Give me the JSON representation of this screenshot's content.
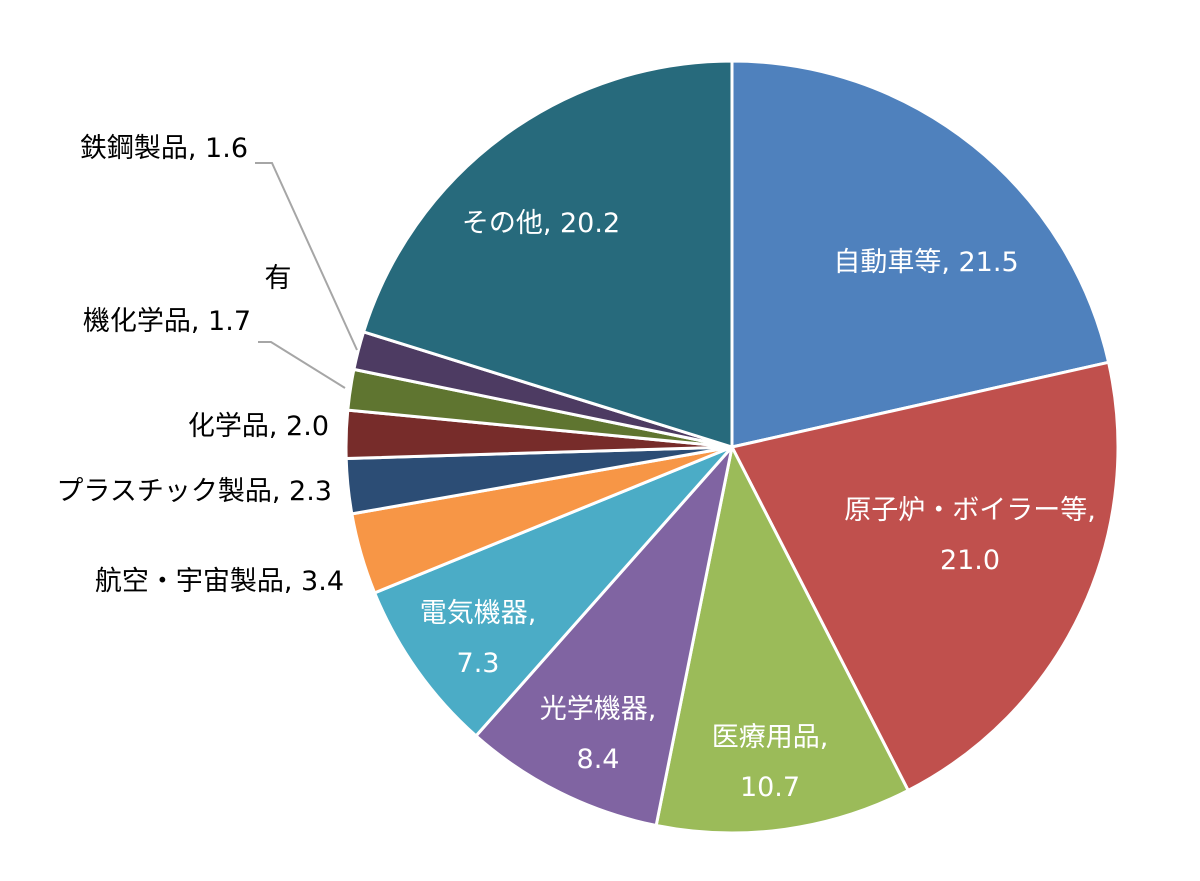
{
  "chart_data": {
    "type": "pie",
    "title": "",
    "slices": [
      {
        "label": "自動車等",
        "value": 21.5,
        "color": "#4f81bd",
        "label_color": "#ffffff",
        "lines": [
          "自動車等, 21.5"
        ]
      },
      {
        "label": "原子炉・ボイラー等",
        "value": 21.0,
        "color": "#c0504d",
        "label_color": "#ffffff",
        "lines": [
          "原子炉・ボイラー等,",
          "21.0"
        ]
      },
      {
        "label": "医療用品",
        "value": 10.7,
        "color": "#9bbb59",
        "label_color": "#ffffff",
        "lines": [
          "医療用品,",
          "10.7"
        ]
      },
      {
        "label": "光学機器",
        "value": 8.4,
        "color": "#8064a2",
        "label_color": "#ffffff",
        "lines": [
          "光学機器,",
          "8.4"
        ]
      },
      {
        "label": "電気機器",
        "value": 7.3,
        "color": "#4bacc6",
        "label_color": "#ffffff",
        "lines": [
          "電気機器,",
          "7.3"
        ]
      },
      {
        "label": "航空・宇宙製品",
        "value": 3.4,
        "color": "#f79646",
        "label_color": "#000000",
        "lines": [
          "航空・宇宙製品, 3.4"
        ]
      },
      {
        "label": "プラスチック製品",
        "value": 2.3,
        "color": "#2c4d75",
        "label_color": "#000000",
        "lines": [
          "プラスチック製品, 2.3"
        ]
      },
      {
        "label": "化学品",
        "value": 2.0,
        "color": "#772c2a",
        "label_color": "#000000",
        "lines": [
          "化学品, 2.0"
        ]
      },
      {
        "label": "有機化学品",
        "value": 1.7,
        "color": "#5f7530",
        "label_color": "#000000",
        "lines": [
          "機化学品, 1.7"
        ]
      },
      {
        "label": "鉄鋼製品",
        "value": 1.6,
        "color": "#4d3b62",
        "label_color": "#000000",
        "lines": [
          "鉄鋼製品, 1.6"
        ]
      },
      {
        "label": "その他",
        "value": 20.2,
        "color": "#276a7c",
        "label_color": "#ffffff",
        "lines": [
          "その他, 20.2"
        ]
      }
    ],
    "extra_text": "有"
  }
}
